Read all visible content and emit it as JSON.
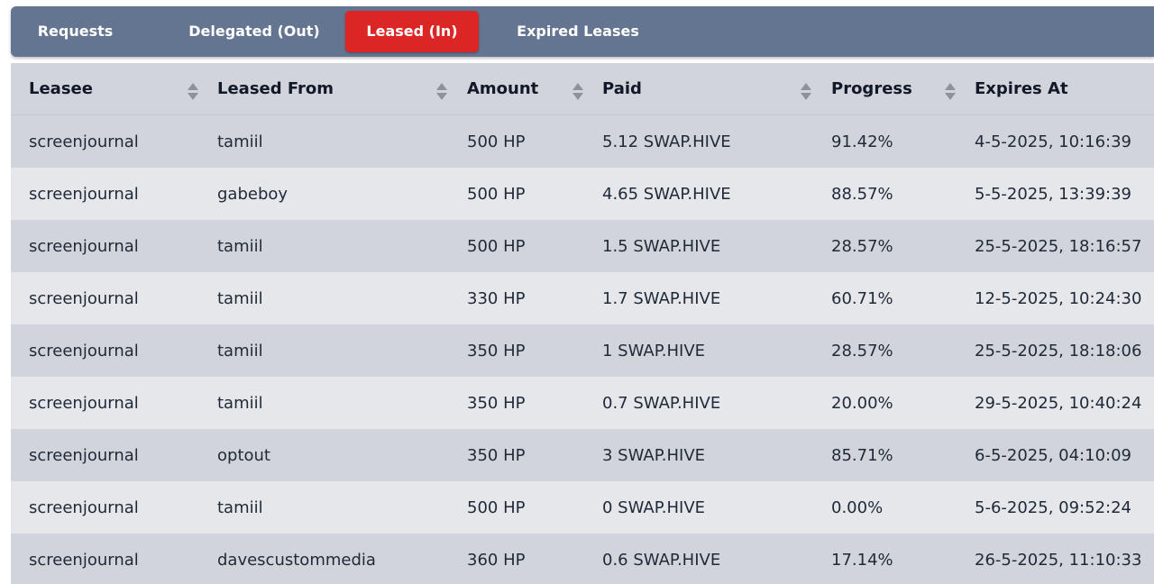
{
  "tabs": [
    {
      "label": "Requests",
      "active": false
    },
    {
      "label": "Delegated (Out)",
      "active": false
    },
    {
      "label": "Leased (In)",
      "active": true
    },
    {
      "label": "Expired Leases",
      "active": false
    }
  ],
  "colors": {
    "tabbar": "#637590",
    "active_tab": "#dc2626",
    "row_odd": "#d1d5db",
    "row_even": "#e5e7eb"
  },
  "table": {
    "columns": [
      "Leasee",
      "Leased From",
      "Amount",
      "Paid",
      "Progress",
      "Expires At"
    ],
    "rows": [
      [
        "screenjournal",
        "tamiil",
        "500 HP",
        "5.12 SWAP.HIVE",
        "91.42%",
        "4-5-2025, 10:16:39"
      ],
      [
        "screenjournal",
        "gabeboy",
        "500 HP",
        "4.65 SWAP.HIVE",
        "88.57%",
        "5-5-2025, 13:39:39"
      ],
      [
        "screenjournal",
        "tamiil",
        "500 HP",
        "1.5 SWAP.HIVE",
        "28.57%",
        "25-5-2025, 18:16:57"
      ],
      [
        "screenjournal",
        "tamiil",
        "330 HP",
        "1.7 SWAP.HIVE",
        "60.71%",
        "12-5-2025, 10:24:30"
      ],
      [
        "screenjournal",
        "tamiil",
        "350 HP",
        "1 SWAP.HIVE",
        "28.57%",
        "25-5-2025, 18:18:06"
      ],
      [
        "screenjournal",
        "tamiil",
        "350 HP",
        "0.7 SWAP.HIVE",
        "20.00%",
        "29-5-2025, 10:40:24"
      ],
      [
        "screenjournal",
        "optout",
        "350 HP",
        "3 SWAP.HIVE",
        "85.71%",
        "6-5-2025, 04:10:09"
      ],
      [
        "screenjournal",
        "tamiil",
        "500 HP",
        "0 SWAP.HIVE",
        "0.00%",
        "5-6-2025, 09:52:24"
      ],
      [
        "screenjournal",
        "davescustommedia",
        "360 HP",
        "0.6 SWAP.HIVE",
        "17.14%",
        "26-5-2025, 11:10:33"
      ]
    ]
  }
}
